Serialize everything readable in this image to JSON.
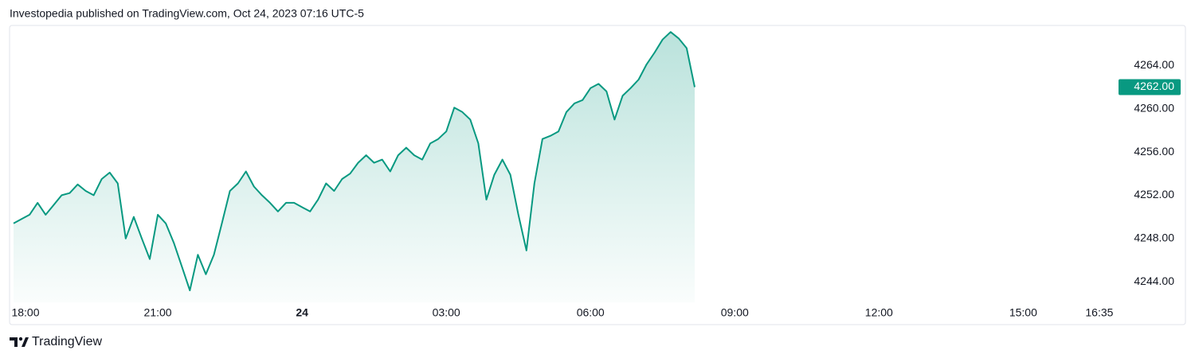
{
  "header": "Investopedia published on TradingView.com, Oct 24, 2023 07:16 UTC-5",
  "footer": "TradingView",
  "chart_data": {
    "type": "area",
    "color": "#089981",
    "x": [
      "18:00",
      "18:10",
      "18:20",
      "18:30",
      "18:40",
      "18:50",
      "19:00",
      "19:10",
      "19:20",
      "19:30",
      "19:40",
      "19:50",
      "20:00",
      "20:10",
      "20:20",
      "20:30",
      "20:40",
      "20:50",
      "21:00",
      "21:10",
      "21:20",
      "21:30",
      "21:40",
      "21:50",
      "22:00",
      "22:10",
      "22:20",
      "22:30",
      "22:40",
      "22:50",
      "23:00",
      "23:10",
      "23:20",
      "23:30",
      "23:40",
      "23:50",
      "00:00",
      "00:10",
      "00:20",
      "00:30",
      "00:40",
      "00:50",
      "01:00",
      "01:10",
      "01:20",
      "01:30",
      "01:40",
      "01:50",
      "02:00",
      "02:10",
      "02:20",
      "02:30",
      "02:40",
      "02:50",
      "03:00",
      "03:10",
      "03:20",
      "03:30",
      "03:40",
      "03:50",
      "04:00",
      "04:10",
      "04:20",
      "04:30",
      "04:40",
      "04:50",
      "05:00",
      "05:10",
      "05:20",
      "05:30",
      "05:40",
      "05:50",
      "06:00",
      "06:10",
      "06:20",
      "06:30",
      "06:40",
      "06:50",
      "07:00",
      "07:10",
      "07:20",
      "07:30",
      "07:40",
      "07:50",
      "08:00",
      "08:10"
    ],
    "values": [
      4249.4,
      4249.8,
      4250.2,
      4251.3,
      4250.2,
      4251.1,
      4252.0,
      4252.2,
      4253.0,
      4252.4,
      4252.0,
      4253.5,
      4254.1,
      4253.1,
      4248.0,
      4250.0,
      4248.0,
      4246.1,
      4250.2,
      4249.4,
      4247.6,
      4245.4,
      4243.2,
      4246.5,
      4244.7,
      4246.5,
      4249.4,
      4252.4,
      4253.1,
      4254.2,
      4252.8,
      4252.0,
      4251.3,
      4250.5,
      4251.3,
      4251.3,
      4250.9,
      4250.5,
      4251.6,
      4253.1,
      4252.4,
      4253.5,
      4254.0,
      4255.0,
      4255.7,
      4255.0,
      4255.3,
      4254.2,
      4255.7,
      4256.4,
      4255.7,
      4255.3,
      4256.8,
      4257.2,
      4257.9,
      4260.1,
      4259.7,
      4259.0,
      4256.8,
      4251.6,
      4253.9,
      4255.3,
      4253.9,
      4250.2,
      4246.9,
      4253.1,
      4257.2,
      4257.5,
      4257.9,
      4259.7,
      4260.5,
      4260.8,
      4261.9,
      4262.3,
      4261.6,
      4259.0,
      4261.2,
      4261.9,
      4262.7,
      4264.1,
      4265.2,
      4266.4,
      4267.1,
      4266.5,
      4265.6,
      4262.0
    ],
    "last_price": {
      "value": 4262,
      "label": "4262.00"
    },
    "xlim": [
      "17:55",
      "16:50"
    ],
    "xticks": [
      "18:00",
      "21:00",
      {
        "value": "00:00",
        "label": "24"
      },
      "03:00",
      "06:00",
      "09:00",
      "12:00",
      "15:00",
      "16:35"
    ],
    "ylim": [
      4242.1,
      4267.7
    ],
    "yticks": [
      {
        "value": 4244,
        "label": "4244.00"
      },
      {
        "value": 4248,
        "label": "4248.00"
      },
      {
        "value": 4252,
        "label": "4252.00"
      },
      {
        "value": 4256,
        "label": "4256.00"
      },
      {
        "value": 4260,
        "label": "4260.00"
      },
      {
        "value": 4264,
        "label": "4264.00"
      }
    ]
  }
}
